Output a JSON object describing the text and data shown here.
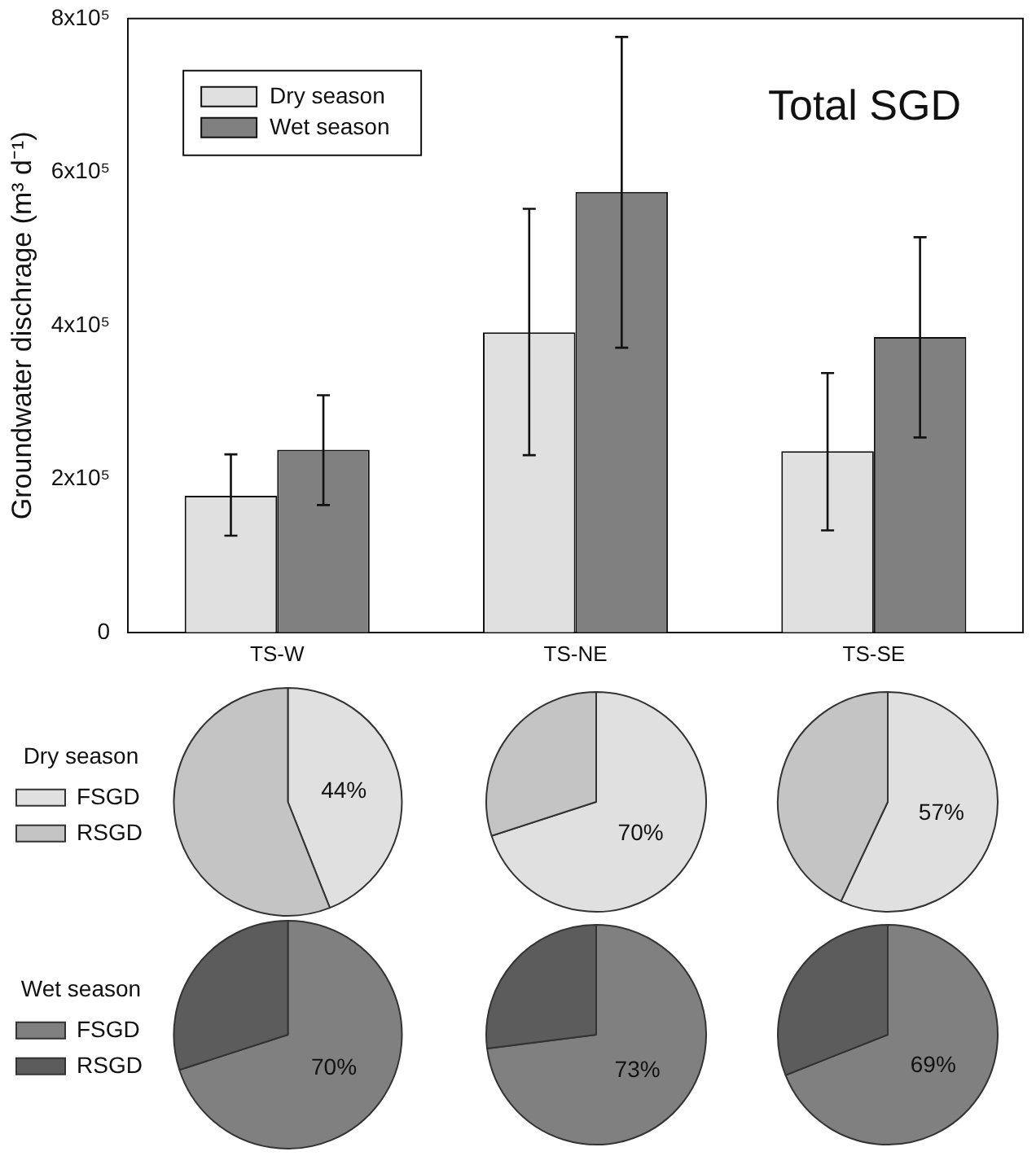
{
  "chart_data": [
    {
      "type": "bar",
      "annotations": [
        "Total SGD"
      ],
      "ylabel": "Groundwater dischrage (m³ d⁻¹)",
      "categories": [
        "TS-W",
        "TS-NE",
        "TS-SE"
      ],
      "legend": "top left",
      "series": [
        {
          "name": "Dry season",
          "color": "#e0e0e0",
          "values": [
            178000,
            391000,
            236000
          ],
          "errors": [
            [
              126000,
              232000
            ],
            [
              231000,
              552000
            ],
            [
              133000,
              338000
            ]
          ]
        },
        {
          "name": "Wet season",
          "color": "#808080",
          "values": [
            238000,
            574000,
            385000
          ],
          "errors": [
            [
              166000,
              309000
            ],
            [
              371000,
              776000
            ],
            [
              254000,
              515000
            ]
          ]
        }
      ],
      "ylim": [
        0,
        800000
      ],
      "yticks": [
        0,
        {
          "value": 200000,
          "label": "2x10⁵"
        },
        {
          "value": 400000,
          "label": "4x10⁵"
        },
        {
          "value": 600000,
          "label": "6x10⁵"
        },
        {
          "value": 800000,
          "label": "8x10⁵"
        }
      ]
    },
    {
      "type": "pie",
      "legend": "left",
      "legend_title": "Dry season",
      "categories": [
        "FSGD",
        "RSGD"
      ],
      "values": [
        44,
        56
      ],
      "colors": [
        "#e0e0e0",
        "#c4c4c4"
      ],
      "value_labels": [
        "44%",
        null
      ]
    },
    {
      "type": "pie",
      "categories": [
        null,
        null
      ],
      "values": [
        70,
        30
      ],
      "colors": [
        "#e0e0e0",
        "#c4c4c4"
      ],
      "value_labels": [
        "70%",
        null
      ]
    },
    {
      "type": "pie",
      "categories": [
        null,
        null
      ],
      "values": [
        57,
        43
      ],
      "colors": [
        "#e0e0e0",
        "#c4c4c4"
      ],
      "value_labels": [
        "57%",
        null
      ]
    },
    {
      "type": "pie",
      "legend": "left",
      "legend_title": "Wet season",
      "categories": [
        "FSGD",
        "RSGD"
      ],
      "values": [
        70,
        30
      ],
      "colors": [
        "#808080",
        "#5c5c5c"
      ],
      "value_labels": [
        "70%",
        null
      ]
    },
    {
      "type": "pie",
      "categories": [
        null,
        null
      ],
      "values": [
        73,
        27
      ],
      "colors": [
        "#808080",
        "#5c5c5c"
      ],
      "value_labels": [
        "73%",
        null
      ]
    },
    {
      "type": "pie",
      "categories": [
        null,
        null
      ],
      "values": [
        69,
        31
      ],
      "colors": [
        "#808080",
        "#5c5c5c"
      ],
      "value_labels": [
        "69%",
        null
      ]
    }
  ]
}
